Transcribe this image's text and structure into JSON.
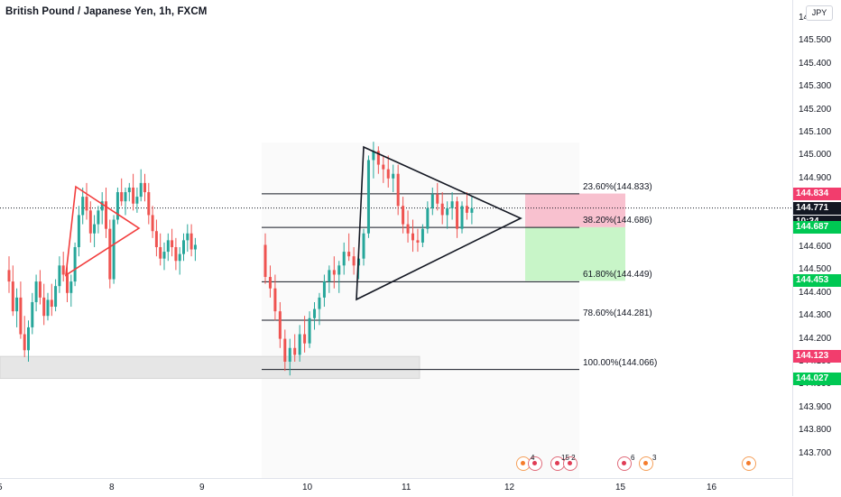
{
  "header": {
    "symbol_title": "British Pound / Japanese Yen, 1h, FXCM",
    "currency_button": "JPY"
  },
  "price_axis": {
    "ticks": [
      "145.600",
      "145.500",
      "145.400",
      "145.300",
      "145.200",
      "145.100",
      "145.000",
      "144.900",
      "144.600",
      "144.500",
      "144.400",
      "144.300",
      "144.200",
      "144.100",
      "144.000",
      "143.900",
      "143.800",
      "143.700"
    ],
    "badges": [
      {
        "label": "144.834",
        "color": "#f23d6d"
      },
      {
        "label": "144.771",
        "color": "#131722"
      },
      {
        "label": "10:34",
        "color": "#131722"
      },
      {
        "label": "144.687",
        "color": "#00c853"
      },
      {
        "label": "144.453",
        "color": "#00c853"
      },
      {
        "label": "144.123",
        "color": "#f23d6d"
      },
      {
        "label": "144.027",
        "color": "#00c853"
      }
    ]
  },
  "time_axis": {
    "labels": [
      "5",
      "8",
      "9",
      "10",
      "11",
      "12",
      "15",
      "16"
    ]
  },
  "fibonacci": {
    "levels": [
      {
        "label": "23.60%(144.833)",
        "ratio": 0.236,
        "price": 144.833
      },
      {
        "label": "38.20%(144.686)",
        "ratio": 0.382,
        "price": 144.686
      },
      {
        "label": "61.80%(144.449)",
        "ratio": 0.618,
        "price": 144.449
      },
      {
        "label": "78.60%(144.281)",
        "ratio": 0.786,
        "price": 144.281
      },
      {
        "label": "100.00%(144.066)",
        "ratio": 1.0,
        "price": 144.066
      }
    ]
  },
  "events": {
    "counts": [
      "4",
      "15 2",
      "6",
      "3"
    ]
  },
  "colors": {
    "bull": "#26a69a",
    "bear": "#ef5350",
    "drawing": "#131722",
    "small_triangle": "#f23d3d",
    "stop_zone": "#f8c1cf",
    "target_zone": "#c8f5c8",
    "support_zone": "#e6e6e6"
  },
  "chart_data": {
    "type": "candlestick",
    "title": "British Pound / Japanese Yen, 1h, FXCM",
    "symbol": "GBP/JPY",
    "timeframe": "1h",
    "source": "FXCM",
    "ylim": [
      143.66,
      145.64
    ],
    "x_tick_labels": [
      "5",
      "8",
      "9",
      "10",
      "11",
      "12",
      "15",
      "16"
    ],
    "last_price": 144.771,
    "countdown": "10:34",
    "fib_retracement": [
      {
        "ratio": 0.236,
        "price": 144.833
      },
      {
        "ratio": 0.382,
        "price": 144.686
      },
      {
        "ratio": 0.618,
        "price": 144.449
      },
      {
        "ratio": 0.786,
        "price": 144.281
      },
      {
        "ratio": 1.0,
        "price": 144.066
      }
    ],
    "marked_levels": {
      "stop": 144.834,
      "entry": 144.687,
      "target_1": 144.453,
      "target_2": 144.027,
      "support": 144.123
    },
    "candles_hourly_ohlc": [
      [
        144.5,
        144.56,
        144.4,
        144.45
      ],
      [
        144.45,
        144.52,
        144.3,
        144.32
      ],
      [
        144.32,
        144.42,
        144.25,
        144.38
      ],
      [
        144.38,
        144.45,
        144.2,
        144.22
      ],
      [
        144.22,
        144.3,
        144.12,
        144.15
      ],
      [
        144.15,
        144.28,
        144.1,
        144.25
      ],
      [
        144.25,
        144.4,
        144.22,
        144.36
      ],
      [
        144.36,
        144.48,
        144.32,
        144.45
      ],
      [
        144.45,
        144.5,
        144.35,
        144.38
      ],
      [
        144.38,
        144.44,
        144.26,
        144.3
      ],
      [
        144.3,
        144.4,
        144.28,
        144.37
      ],
      [
        144.37,
        144.44,
        144.3,
        144.34
      ],
      [
        144.34,
        144.46,
        144.32,
        144.43
      ],
      [
        144.43,
        144.56,
        144.4,
        144.52
      ],
      [
        144.52,
        144.58,
        144.45,
        144.48
      ],
      [
        144.48,
        144.52,
        144.36,
        144.4
      ],
      [
        144.4,
        144.48,
        144.34,
        144.45
      ],
      [
        144.45,
        144.62,
        144.43,
        144.6
      ],
      [
        144.6,
        144.78,
        144.56,
        144.74
      ],
      [
        144.74,
        144.86,
        144.7,
        144.82
      ],
      [
        144.82,
        144.88,
        144.72,
        144.76
      ],
      [
        144.76,
        144.8,
        144.62,
        144.66
      ],
      [
        144.66,
        144.74,
        144.6,
        144.7
      ],
      [
        144.7,
        144.78,
        144.66,
        144.76
      ],
      [
        144.76,
        144.84,
        144.7,
        144.8
      ],
      [
        144.8,
        144.86,
        144.64,
        144.68
      ],
      [
        144.68,
        144.72,
        144.42,
        144.46
      ],
      [
        144.46,
        144.74,
        144.44,
        144.72
      ],
      [
        144.72,
        144.86,
        144.7,
        144.84
      ],
      [
        144.84,
        144.9,
        144.78,
        144.8
      ],
      [
        144.8,
        144.86,
        144.74,
        144.84
      ],
      [
        144.84,
        144.88,
        144.8,
        144.86
      ],
      [
        144.86,
        144.92,
        144.76,
        144.79
      ],
      [
        144.79,
        144.86,
        144.75,
        144.82
      ],
      [
        144.82,
        144.94,
        144.8,
        144.88
      ],
      [
        144.88,
        144.92,
        144.8,
        144.84
      ],
      [
        144.84,
        144.88,
        144.7,
        144.74
      ],
      [
        144.74,
        144.78,
        144.64,
        144.67
      ],
      [
        144.67,
        144.72,
        144.56,
        144.6
      ],
      [
        144.6,
        144.66,
        144.52,
        144.55
      ],
      [
        144.55,
        144.62,
        144.5,
        144.58
      ],
      [
        144.58,
        144.66,
        144.54,
        144.63
      ],
      [
        144.63,
        144.68,
        144.56,
        144.6
      ],
      [
        144.6,
        144.64,
        144.5,
        144.54
      ],
      [
        144.54,
        144.6,
        144.48,
        144.57
      ],
      [
        144.57,
        144.66,
        144.54,
        144.63
      ],
      [
        144.63,
        144.7,
        144.58,
        144.66
      ],
      [
        144.66,
        144.7,
        144.56,
        144.59
      ],
      [
        144.59,
        144.64,
        144.54,
        144.61
      ],
      [
        144.61,
        144.66,
        144.44,
        144.47
      ],
      [
        144.47,
        144.52,
        144.38,
        144.42
      ],
      [
        144.42,
        144.48,
        144.28,
        144.32
      ],
      [
        144.32,
        144.36,
        144.16,
        144.2
      ],
      [
        144.2,
        144.24,
        144.06,
        144.1
      ],
      [
        144.1,
        144.2,
        144.04,
        144.16
      ],
      [
        144.16,
        144.22,
        144.1,
        144.13
      ],
      [
        144.13,
        144.26,
        144.1,
        144.22
      ],
      [
        144.22,
        144.3,
        144.14,
        144.18
      ],
      [
        144.18,
        144.32,
        144.16,
        144.29
      ],
      [
        144.29,
        144.36,
        144.24,
        144.33
      ],
      [
        144.33,
        144.4,
        144.26,
        144.38
      ],
      [
        144.38,
        144.48,
        144.34,
        144.45
      ],
      [
        144.45,
        144.52,
        144.4,
        144.5
      ],
      [
        144.5,
        144.56,
        144.42,
        144.48
      ],
      [
        144.48,
        144.54,
        144.4,
        144.52
      ],
      [
        144.52,
        144.62,
        144.48,
        144.58
      ],
      [
        144.58,
        144.66,
        144.54,
        144.56
      ],
      [
        144.56,
        144.6,
        144.48,
        144.52
      ],
      [
        144.52,
        144.58,
        144.46,
        144.55
      ],
      [
        144.55,
        144.68,
        144.52,
        144.66
      ],
      [
        144.66,
        145.0,
        144.64,
        144.98
      ],
      [
        144.98,
        145.06,
        144.9,
        145.02
      ],
      [
        145.02,
        145.04,
        144.92,
        144.96
      ],
      [
        144.96,
        145.0,
        144.88,
        144.94
      ],
      [
        144.94,
        145.0,
        144.86,
        144.9
      ],
      [
        144.9,
        144.96,
        144.84,
        144.92
      ],
      [
        144.92,
        144.96,
        144.74,
        144.78
      ],
      [
        144.78,
        144.82,
        144.66,
        144.7
      ],
      [
        144.7,
        144.76,
        144.62,
        144.66
      ],
      [
        144.66,
        144.72,
        144.58,
        144.63
      ],
      [
        144.63,
        144.68,
        144.58,
        144.62
      ],
      [
        144.62,
        144.7,
        144.6,
        144.68
      ],
      [
        144.68,
        144.8,
        144.66,
        144.77
      ],
      [
        144.77,
        144.86,
        144.74,
        144.83
      ],
      [
        144.83,
        144.88,
        144.76,
        144.79
      ],
      [
        144.79,
        144.84,
        144.7,
        144.74
      ],
      [
        144.74,
        144.8,
        144.68,
        144.77
      ],
      [
        144.77,
        144.84,
        144.72,
        144.8
      ],
      [
        144.8,
        144.82,
        144.64,
        144.68
      ],
      [
        144.68,
        144.8,
        144.66,
        144.78
      ],
      [
        144.78,
        144.84,
        144.72,
        144.75
      ],
      [
        144.75,
        144.82,
        144.7,
        144.77
      ]
    ]
  }
}
